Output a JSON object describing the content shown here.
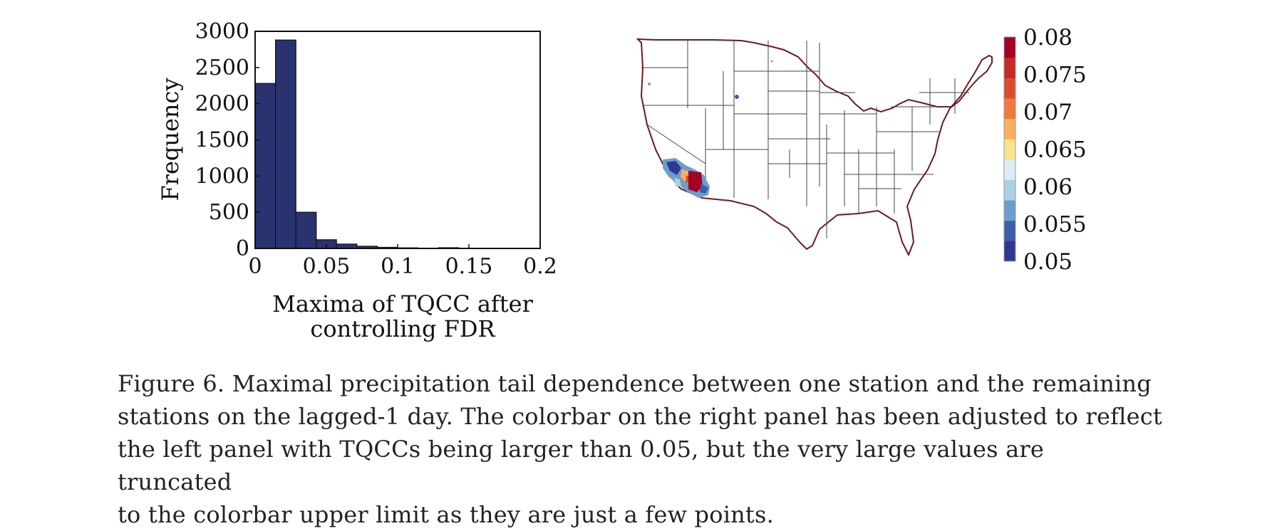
{
  "chart_data": [
    {
      "type": "bar",
      "bin_edges": [
        0,
        0.0143,
        0.0286,
        0.0429,
        0.0571,
        0.0714,
        0.0857,
        0.1,
        0.1143,
        0.1286,
        0.1429,
        0.1571,
        0.1714,
        0.1857,
        0.2
      ],
      "values": [
        2280,
        2880,
        500,
        120,
        60,
        30,
        15,
        8,
        4,
        10,
        3,
        2,
        1,
        1
      ],
      "bar_color": "#2b3270",
      "xlabel": "Maxima of TQCC after controlling FDR",
      "xlabel_lines": [
        "Maxima of TQCC after",
        "controlling FDR"
      ],
      "ylabel": "Frequency",
      "xlim": [
        0,
        0.2
      ],
      "ylim": [
        0,
        3000
      ],
      "xticks": [
        0,
        0.05,
        0.1,
        0.15,
        0.2
      ],
      "xtick_labels": [
        "0",
        "0.05",
        "0.1",
        "0.15",
        "0.2"
      ],
      "yticks": [
        0,
        500,
        1000,
        1500,
        2000,
        2500,
        3000
      ],
      "ytick_labels": [
        "0",
        "500",
        "1000",
        "1500",
        "2000",
        "2500",
        "3000"
      ],
      "grid": false
    },
    {
      "type": "heatmap",
      "map": "contiguous United States",
      "colorbar": {
        "range": [
          0.05,
          0.08
        ],
        "levels": 11,
        "tick_values": [
          0.05,
          0.055,
          0.06,
          0.065,
          0.07,
          0.075,
          0.08
        ],
        "tick_labels": [
          "0.05",
          "0.055",
          "0.06",
          "0.065",
          "0.07",
          "0.075",
          "0.08"
        ],
        "colors": [
          "#313695",
          "#3d5fa8",
          "#6a9fcb",
          "#a9d0e4",
          "#dcedf4",
          "#fbe28c",
          "#f7b05c",
          "#ee7a3c",
          "#dd4b2c",
          "#c52a28",
          "#a50026"
        ]
      }
    }
  ],
  "caption": {
    "lines": [
      "Figure 6. Maximal precipitation tail dependence between one station and the remaining",
      "stations on the lagged-1 day. The colorbar on the right panel has been adjusted to reflect",
      "the left panel with TQCCs being larger than 0.05, but the very large values are truncated",
      "to the colorbar upper limit as they are just a few points."
    ]
  }
}
